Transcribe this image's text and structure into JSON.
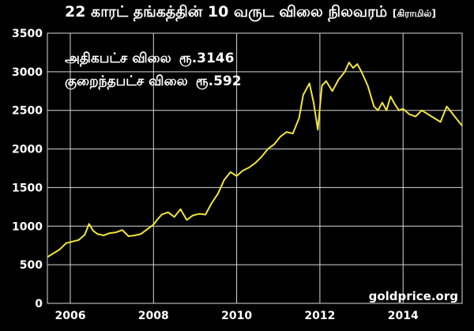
{
  "chart_data": {
    "type": "line",
    "title": "22 காரட் தங்கத்தின்  10 வருட விலை நிலவரம்",
    "unit": "[கிராமில்]",
    "annotations": {
      "high_label": "அதிகபட்ச விலை",
      "high_value": "ரூ.3146",
      "low_label": "குறைந்தபட்ச விலை",
      "low_value": "ரூ.592"
    },
    "watermark": "goldprice.org",
    "xlabel": "",
    "ylabel": "",
    "xlim": [
      2005.45,
      2015.42
    ],
    "ylim": [
      0,
      3500
    ],
    "y_ticks": [
      0,
      500,
      1000,
      1500,
      2000,
      2500,
      3000,
      3500
    ],
    "x_ticks": [
      2006,
      2008,
      2010,
      2012,
      2014
    ],
    "grid": true,
    "colors": {
      "line": "#f2e53a",
      "grid": "#d8d8d8",
      "background": "#000000",
      "text": "#ffffff"
    },
    "series": [
      {
        "x": [
          2005.45,
          2005.6,
          2005.75,
          2005.9,
          2006.05,
          2006.2,
          2006.35,
          2006.45,
          2006.55,
          2006.65,
          2006.8,
          2006.95,
          2007.1,
          2007.25,
          2007.4,
          2007.55,
          2007.7,
          2007.85,
          2008.0,
          2008.1,
          2008.2,
          2008.35,
          2008.5,
          2008.65,
          2008.8,
          2008.95,
          2009.1,
          2009.25,
          2009.4,
          2009.55,
          2009.7,
          2009.85,
          2010.0,
          2010.15,
          2010.3,
          2010.45,
          2010.6,
          2010.75,
          2010.9,
          2011.05,
          2011.2,
          2011.35,
          2011.5,
          2011.6,
          2011.75,
          2011.85,
          2011.95,
          2012.05,
          2012.15,
          2012.3,
          2012.45,
          2012.6,
          2012.7,
          2012.8,
          2012.9,
          2013.0,
          2013.15,
          2013.3,
          2013.4,
          2013.5,
          2013.6,
          2013.7,
          2013.8,
          2013.9,
          2014.0,
          2014.15,
          2014.3,
          2014.45,
          2014.6,
          2014.75,
          2014.9,
          2015.05,
          2015.2,
          2015.3,
          2015.42
        ],
        "y": [
          600,
          650,
          700,
          780,
          800,
          820,
          890,
          1030,
          940,
          900,
          880,
          910,
          920,
          950,
          870,
          880,
          900,
          960,
          1020,
          1090,
          1150,
          1180,
          1120,
          1220,
          1080,
          1140,
          1160,
          1150,
          1300,
          1420,
          1600,
          1700,
          1650,
          1720,
          1760,
          1820,
          1900,
          2000,
          2060,
          2160,
          2220,
          2200,
          2400,
          2700,
          2850,
          2600,
          2250,
          2820,
          2880,
          2750,
          2900,
          3000,
          3120,
          3050,
          3100,
          3000,
          2820,
          2550,
          2500,
          2600,
          2500,
          2680,
          2580,
          2500,
          2520,
          2450,
          2420,
          2500,
          2450,
          2400,
          2350,
          2550,
          2450,
          2380,
          2300
        ]
      }
    ]
  }
}
